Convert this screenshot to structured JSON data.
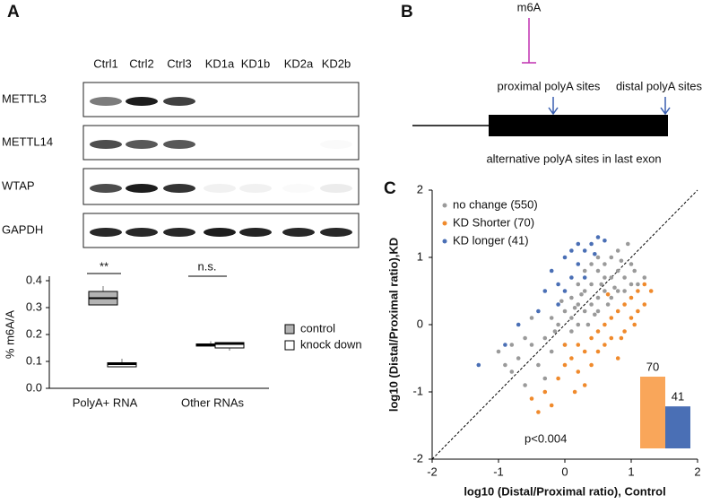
{
  "panels": {
    "a": "A",
    "b": "B",
    "c": "C"
  },
  "blot": {
    "lanes": [
      "Ctrl1",
      "Ctrl2",
      "Ctrl3",
      "KD1a",
      "KD1b",
      "KD2a",
      "KD2b"
    ],
    "rows": [
      "METTL3",
      "METTL14",
      "WTAP",
      "GAPDH"
    ]
  },
  "diagram": {
    "mark": "m6A",
    "proximal": "proximal polyA sites",
    "distal": "distal polyA sites",
    "caption": "alternative polyA sites in last exon"
  },
  "chart_data": [
    {
      "type": "box",
      "y_label": "% m6A/A",
      "categories": [
        "PolyA+ RNA",
        "Other RNAs"
      ],
      "annotations": [
        "**",
        "n.s."
      ],
      "ylim": [
        0,
        0.4
      ],
      "yticks": [
        {
          "value": 0,
          "label": "0.0"
        },
        0.1,
        0.2,
        0.3,
        0.4
      ],
      "series": [
        {
          "name": "control",
          "color": "#b3b3b3",
          "values": [
            [
              0.31,
              0.31,
              0.335,
              0.36,
              0.38
            ],
            [
              0.155,
              0.157,
              0.16,
              0.165,
              0.175
            ]
          ]
        },
        {
          "name": "knock down",
          "color": "#ffffff",
          "values": [
            [
              0.08,
              0.08,
              0.09,
              0.095,
              0.11
            ],
            [
              0.14,
              0.15,
              0.165,
              0.17,
              0.17
            ]
          ]
        }
      ]
    },
    {
      "type": "scatter",
      "x_label": "log10 (Distal/Proximal ratio), Control",
      "y_label": "log10 (Distal/Proximal ratio),KD",
      "annotation": "p<0.004",
      "xlim": [
        -2,
        2
      ],
      "ylim": [
        -2,
        2
      ],
      "xticks": [
        -2,
        -1,
        0,
        1,
        2
      ],
      "yticks": [
        -2,
        -1,
        0,
        1,
        2
      ],
      "series": [
        {
          "name": "no change (550)",
          "color": "#9a9a9a",
          "x": [
            -1.0,
            -0.9,
            -0.8,
            -0.7,
            -0.6,
            -0.5,
            -0.4,
            -0.3,
            -0.2,
            -0.1,
            0,
            0.1,
            0.1,
            0.2,
            0.2,
            0.3,
            0.3,
            0.4,
            0.4,
            0.5,
            0.5,
            0.6,
            0.6,
            0.7,
            0.7,
            0.8,
            0.8,
            0.9,
            1.0,
            1.1,
            1.2,
            -0.5,
            -0.6,
            0,
            0.1,
            0.2,
            0.3,
            0.4,
            0.5,
            0.6,
            0.7,
            0.8,
            0.9,
            1.0,
            -0.2,
            -0.8,
            -0.3,
            0.45,
            0.55,
            0.65,
            0.75,
            0.85,
            0.35,
            0.25,
            0.15,
            -0.05,
            -0.15,
            0.95,
            1.05,
            0.5
          ],
          "values": [
            -0.4,
            -0.6,
            -0.7,
            -0.5,
            -0.9,
            -0.3,
            -0.6,
            -0.2,
            -0.4,
            0.0,
            0.2,
            0.1,
            0.4,
            0.3,
            0.0,
            0.5,
            0.2,
            0.6,
            0.3,
            0.8,
            0.4,
            0.5,
            0.9,
            0.7,
            0.4,
            0.8,
            0.5,
            0.7,
            0.9,
            0.6,
            0.7,
            0.1,
            -0.2,
            -0.3,
            -0.1,
            0.6,
            0.8,
            0.9,
            1.0,
            0.7,
            1.0,
            1.1,
            0.5,
            0.6,
            0.1,
            -0.3,
            -0.8,
            0.15,
            0.6,
            0.3,
            0.55,
            0.95,
            0.0,
            0.45,
            0.25,
            0.35,
            -0.1,
            1.2,
            0.8,
            0.2
          ]
        },
        {
          "name": "KD Shorter (70)",
          "color": "#f08a2c",
          "x": [
            -0.4,
            -0.3,
            -0.2,
            -0.1,
            0,
            0.1,
            0.2,
            0.2,
            0.3,
            0.4,
            0.4,
            0.5,
            0.5,
            0.6,
            0.6,
            0.7,
            0.7,
            0.8,
            0.8,
            0.9,
            0.9,
            1.0,
            1.0,
            1.1,
            1.1,
            1.2,
            1.3,
            1.2,
            0.3,
            -0.5,
            0.0,
            0.65,
            0.85,
            1.05,
            0.15
          ],
          "values": [
            -1.3,
            -1.0,
            -1.2,
            -0.8,
            -0.6,
            -0.5,
            -0.7,
            -0.3,
            -0.4,
            -0.2,
            -0.6,
            -0.1,
            -0.4,
            0.0,
            -0.3,
            0.1,
            -0.2,
            0.2,
            -0.5,
            0.3,
            -0.1,
            0.4,
            0.1,
            0.5,
            0.2,
            0.3,
            0.5,
            0.6,
            -0.9,
            -1.1,
            -0.3,
            0.45,
            -0.2,
            0.0,
            -1.0
          ]
        },
        {
          "name": "KD longer (41)",
          "color": "#4a6fb5",
          "x": [
            -1.3,
            -0.9,
            -0.7,
            -0.4,
            -0.3,
            -0.2,
            -0.1,
            0,
            0.1,
            0.1,
            0.2,
            0.3,
            0.3,
            0.4,
            0.5,
            0.6,
            0.2,
            -0.1,
            0.0,
            0.45
          ],
          "values": [
            -0.6,
            -0.3,
            0.0,
            0.2,
            0.5,
            0.8,
            0.6,
            1.0,
            0.7,
            1.1,
            0.9,
            1.1,
            0.7,
            1.2,
            1.3,
            1.25,
            1.2,
            0.3,
            0.5,
            1.05
          ]
        }
      ]
    },
    {
      "type": "bar",
      "categories": [
        null,
        null
      ],
      "values": [
        70,
        41
      ],
      "colors": [
        "#f9a65a",
        "#4a6fb5"
      ]
    }
  ]
}
